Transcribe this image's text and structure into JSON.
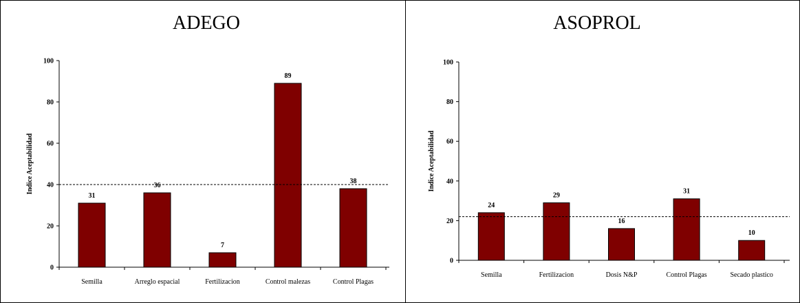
{
  "chart_data": [
    {
      "type": "bar",
      "title": "ADEGO",
      "ylabel": "Indice Aceptabilidad",
      "xlabel": "",
      "categories": [
        "Semilla",
        "Arreglo espacial",
        "Fertilizacion",
        "Control malezas",
        "Control Plagas"
      ],
      "values": [
        31,
        36,
        7,
        89,
        38
      ],
      "value_labels": [
        "31",
        "36",
        "7",
        "89",
        "38"
      ],
      "ylim": [
        0,
        100
      ],
      "yticks": [
        0,
        20,
        40,
        60,
        80,
        100
      ],
      "ytick_labels": [
        "0",
        "20",
        "40",
        "60",
        "80",
        "100"
      ],
      "reference_line": 40,
      "bar_color": "#7f0000",
      "grid": false,
      "legend": "none"
    },
    {
      "type": "bar",
      "title": "ASOPROL",
      "ylabel": "Indice Aceptabilidad",
      "xlabel": "",
      "categories": [
        "Semilla",
        "Fertilizacion",
        "Dosis N&P",
        "Control Plagas",
        "Secado plastico"
      ],
      "values": [
        24,
        29,
        16,
        31,
        10
      ],
      "value_labels": [
        "24",
        "29",
        "16",
        "31",
        "10"
      ],
      "ylim": [
        0,
        100
      ],
      "yticks": [
        0,
        20,
        40,
        60,
        80,
        100
      ],
      "ytick_labels": [
        "0",
        "20",
        "40",
        "60",
        "80",
        "100"
      ],
      "reference_line": 22,
      "bar_color": "#7f0000",
      "grid": false,
      "legend": "none"
    }
  ]
}
